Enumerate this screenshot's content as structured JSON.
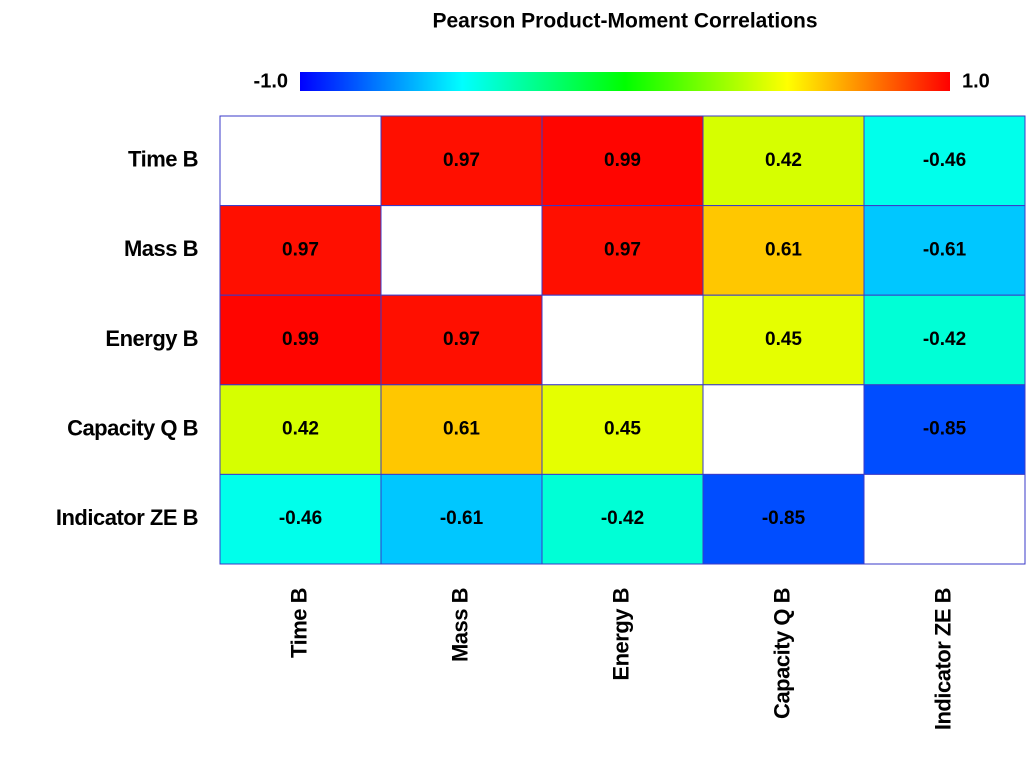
{
  "chart_data": {
    "type": "heatmap",
    "title": "Pearson Product-Moment Correlations",
    "x_categories": [
      "Time B",
      "Mass B",
      "Energy B",
      "Capacity Q B",
      "Indicator ZE B"
    ],
    "y_categories": [
      "Time B",
      "Mass B",
      "Energy B",
      "Capacity Q B",
      "Indicator ZE B"
    ],
    "values": [
      [
        null,
        0.97,
        0.99,
        0.42,
        -0.46
      ],
      [
        0.97,
        null,
        0.97,
        0.61,
        -0.61
      ],
      [
        0.99,
        0.97,
        null,
        0.45,
        -0.42
      ],
      [
        0.42,
        0.61,
        0.45,
        null,
        -0.85
      ],
      [
        -0.46,
        -0.61,
        -0.42,
        -0.85,
        null
      ]
    ],
    "colorbar_lim": [
      -1,
      1
    ],
    "colorbar_ticks": [
      {
        "value": -1,
        "label": "-1.0"
      },
      {
        "value": 1,
        "label": "1.0"
      }
    ],
    "colormap": [
      "#0000ff",
      "#00ffff",
      "#00ff00",
      "#ffff00",
      "#ff0000"
    ]
  }
}
